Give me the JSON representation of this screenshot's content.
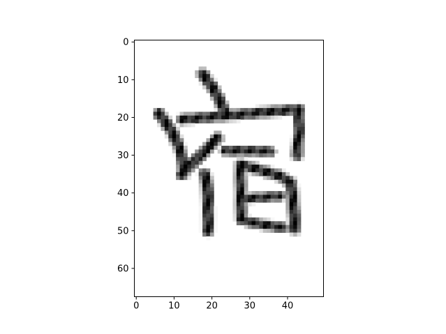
{
  "chart_data": {
    "type": "heatmap",
    "title": "",
    "xlabel": "",
    "ylabel": "",
    "colormap": "gray_r",
    "xlim": [
      -0.5,
      49.5
    ],
    "ylim": [
      67.5,
      -0.5
    ],
    "xticks": [
      0,
      10,
      20,
      30,
      40
    ],
    "yticks": [
      0,
      10,
      20,
      30,
      40,
      50,
      60
    ],
    "xtick_labels": [
      "0",
      "10",
      "20",
      "30",
      "40"
    ],
    "ytick_labels": [
      "0",
      "10",
      "20",
      "30",
      "40",
      "50",
      "60"
    ],
    "grid": false,
    "image": {
      "description": "grayscale 50x68 bitmap of a handwritten CJK character",
      "width": 50,
      "height": 68,
      "strokes": [
        {
          "name": "top-dot",
          "points": [
            [
              17.5,
              8.5
            ],
            [
              20.5,
              12.5
            ],
            [
              23.5,
              18.5
            ]
          ],
          "width": 1.6
        },
        {
          "name": "roof-left",
          "points": [
            [
              6,
              19
            ],
            [
              9,
              23
            ],
            [
              11,
              27
            ]
          ],
          "width": 1.6
        },
        {
          "name": "roof-bar",
          "points": [
            [
              12,
              20.5
            ],
            [
              24,
              19.5
            ],
            [
              35,
              18.5
            ],
            [
              43,
              17.8
            ]
          ],
          "width": 1.3
        },
        {
          "name": "roof-right",
          "points": [
            [
              43,
              18
            ],
            [
              43,
              24
            ],
            [
              42.5,
              30
            ]
          ],
          "width": 1.5
        },
        {
          "name": "left-diagonal",
          "points": [
            [
              21.5,
              25.5
            ],
            [
              18,
              29
            ],
            [
              15,
              32
            ],
            [
              12,
              35
            ]
          ],
          "width": 1.6
        },
        {
          "name": "left-up",
          "points": [
            [
              11,
              27
            ],
            [
              12,
              30
            ],
            [
              12.5,
              35
            ]
          ],
          "width": 1.5
        },
        {
          "name": "person-vertical",
          "points": [
            [
              18,
              35
            ],
            [
              18.8,
              38
            ],
            [
              19,
              44
            ],
            [
              19,
              50
            ]
          ],
          "width": 1.7
        },
        {
          "name": "top-cross",
          "points": [
            [
              23.5,
              28.8
            ],
            [
              30,
              28.8
            ],
            [
              35.5,
              29
            ]
          ],
          "width": 1.2
        },
        {
          "name": "box-left",
          "points": [
            [
              27.5,
              33
            ],
            [
              27.6,
              40
            ],
            [
              27.7,
              47
            ]
          ],
          "width": 1.4
        },
        {
          "name": "box-top",
          "points": [
            [
              27.5,
              32.5
            ],
            [
              33,
              34
            ],
            [
              38,
              35.5
            ],
            [
              41,
              37.5
            ]
          ],
          "width": 1.4
        },
        {
          "name": "box-right",
          "points": [
            [
              41,
              37.5
            ],
            [
              41.5,
              43
            ],
            [
              42,
              49.5
            ]
          ],
          "width": 1.6
        },
        {
          "name": "box-middle",
          "points": [
            [
              28,
              41.5
            ],
            [
              33,
              41.2
            ],
            [
              38,
              40.8
            ]
          ],
          "width": 1.1
        },
        {
          "name": "box-bottom",
          "points": [
            [
              29,
              47.5
            ],
            [
              34,
              48.5
            ],
            [
              39,
              49.2
            ]
          ],
          "width": 1.2
        }
      ]
    }
  }
}
